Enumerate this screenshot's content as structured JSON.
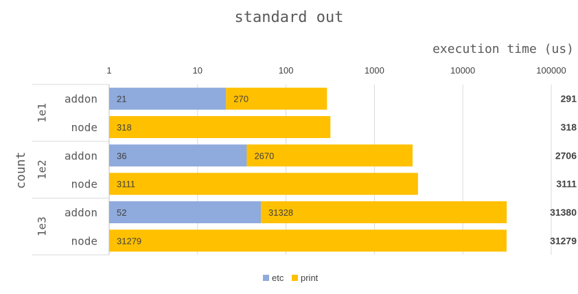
{
  "chart_data": {
    "type": "bar",
    "stacked": true,
    "orientation": "horizontal",
    "title": "standard out",
    "xlabel": "execution time (us)",
    "ylabel": "count",
    "x_scale": "log",
    "xlim": [
      1,
      100000
    ],
    "x_ticks": [
      "1",
      "10",
      "100",
      "1000",
      "10000",
      "100000"
    ],
    "grid": true,
    "legend_position": "bottom",
    "groups": [
      {
        "label": "1e1",
        "rows": [
          {
            "label": "addon",
            "etc": 21,
            "print": 270,
            "total": 291
          },
          {
            "label": "node",
            "etc": null,
            "print": 318,
            "total": 318
          }
        ]
      },
      {
        "label": "1e2",
        "rows": [
          {
            "label": "addon",
            "etc": 36,
            "print": 2670,
            "total": 2706
          },
          {
            "label": "node",
            "etc": null,
            "print": 3111,
            "total": 3111
          }
        ]
      },
      {
        "label": "1e3",
        "rows": [
          {
            "label": "addon",
            "etc": 52,
            "print": 31328,
            "total": 31380
          },
          {
            "label": "node",
            "etc": null,
            "print": 31279,
            "total": 31279
          }
        ]
      }
    ],
    "series": [
      {
        "name": "etc",
        "color": "#8faadc"
      },
      {
        "name": "print",
        "color": "#ffc000"
      }
    ]
  }
}
